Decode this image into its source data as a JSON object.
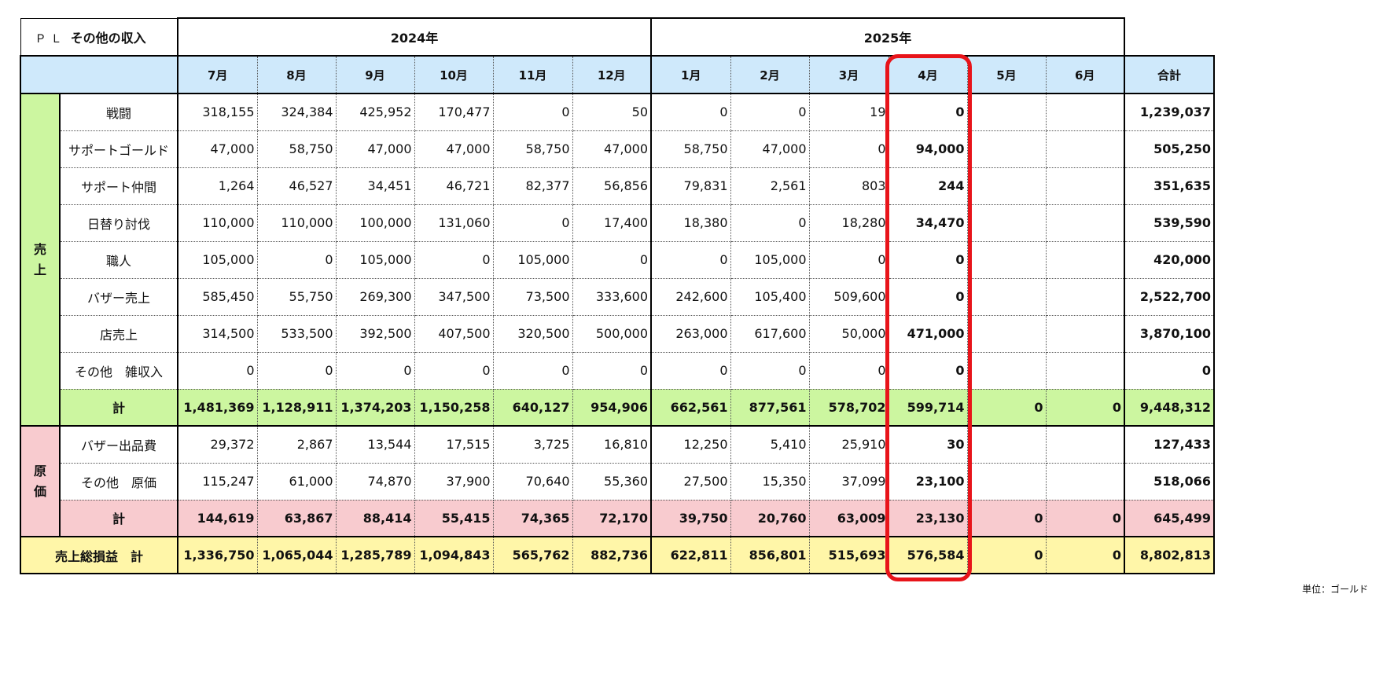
{
  "title": {
    "prefix": "ＰＬ",
    "text": "その他の収入"
  },
  "years": [
    "2024年",
    "2025年"
  ],
  "months": [
    "7月",
    "8月",
    "9月",
    "10月",
    "11月",
    "12月",
    "1月",
    "2月",
    "3月",
    "4月",
    "5月",
    "6月"
  ],
  "total_header": "合計",
  "sales": {
    "category": [
      "売",
      "上"
    ],
    "rows": [
      {
        "label": "戦闘",
        "values": [
          "318,155",
          "324,384",
          "425,952",
          "170,477",
          "0",
          "50",
          "0",
          "0",
          "19",
          "0",
          "",
          ""
        ],
        "total": "1,239,037"
      },
      {
        "label": "サポートゴールド",
        "values": [
          "47,000",
          "58,750",
          "47,000",
          "47,000",
          "58,750",
          "47,000",
          "58,750",
          "47,000",
          "0",
          "94,000",
          "",
          ""
        ],
        "total": "505,250"
      },
      {
        "label": "サポート仲間",
        "values": [
          "1,264",
          "46,527",
          "34,451",
          "46,721",
          "82,377",
          "56,856",
          "79,831",
          "2,561",
          "803",
          "244",
          "",
          ""
        ],
        "total": "351,635"
      },
      {
        "label": "日替り討伐",
        "values": [
          "110,000",
          "110,000",
          "100,000",
          "131,060",
          "0",
          "17,400",
          "18,380",
          "0",
          "18,280",
          "34,470",
          "",
          ""
        ],
        "total": "539,590"
      },
      {
        "label": "職人",
        "values": [
          "105,000",
          "0",
          "105,000",
          "0",
          "105,000",
          "0",
          "0",
          "105,000",
          "0",
          "0",
          "",
          ""
        ],
        "total": "420,000"
      },
      {
        "label": "バザー売上",
        "values": [
          "585,450",
          "55,750",
          "269,300",
          "347,500",
          "73,500",
          "333,600",
          "242,600",
          "105,400",
          "509,600",
          "0",
          "",
          ""
        ],
        "total": "2,522,700"
      },
      {
        "label": "店売上",
        "values": [
          "314,500",
          "533,500",
          "392,500",
          "407,500",
          "320,500",
          "500,000",
          "263,000",
          "617,600",
          "50,000",
          "471,000",
          "",
          ""
        ],
        "total": "3,870,100"
      },
      {
        "label": "その他　雑収入",
        "values": [
          "0",
          "0",
          "0",
          "0",
          "0",
          "0",
          "0",
          "0",
          "0",
          "0",
          "",
          ""
        ],
        "total": "0"
      }
    ],
    "subtotal": {
      "label": "計",
      "values": [
        "1,481,369",
        "1,128,911",
        "1,374,203",
        "1,150,258",
        "640,127",
        "954,906",
        "662,561",
        "877,561",
        "578,702",
        "599,714",
        "0",
        "0"
      ],
      "total": "9,448,312"
    }
  },
  "cost": {
    "category": [
      "原",
      "価"
    ],
    "rows": [
      {
        "label": "バザー出品費",
        "values": [
          "29,372",
          "2,867",
          "13,544",
          "17,515",
          "3,725",
          "16,810",
          "12,250",
          "5,410",
          "25,910",
          "30",
          "",
          ""
        ],
        "total": "127,433"
      },
      {
        "label": "その他　原価",
        "values": [
          "115,247",
          "61,000",
          "74,870",
          "37,900",
          "70,640",
          "55,360",
          "27,500",
          "15,350",
          "37,099",
          "23,100",
          "",
          ""
        ],
        "total": "518,066"
      }
    ],
    "subtotal": {
      "label": "計",
      "values": [
        "144,619",
        "63,867",
        "88,414",
        "55,415",
        "74,365",
        "72,170",
        "39,750",
        "20,760",
        "63,009",
        "23,130",
        "0",
        "0"
      ],
      "total": "645,499"
    }
  },
  "gross_profit": {
    "label": "売上総損益　計",
    "values": [
      "1,336,750",
      "1,065,044",
      "1,285,789",
      "1,094,843",
      "565,762",
      "882,736",
      "622,811",
      "856,801",
      "515,693",
      "576,584",
      "0",
      "0"
    ],
    "total": "8,802,813"
  },
  "unit_note": "単位：ゴールド",
  "highlight": {
    "month": "4月",
    "color": "#e8141a"
  }
}
